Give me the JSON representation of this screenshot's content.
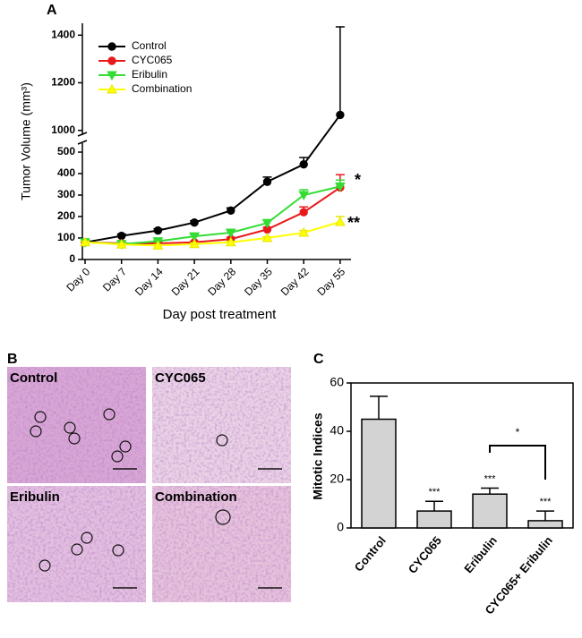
{
  "chart_data": [
    {
      "type": "line",
      "panel": "A",
      "ylabel": "Tumor Volume (mm³)",
      "xlabel": "Day post treatment",
      "categories": [
        "Day 0",
        "Day 7",
        "Day 14",
        "Day 21",
        "Day 28",
        "Day 35",
        "Day 42",
        "Day 55"
      ],
      "ylim": [
        0,
        1450
      ],
      "axis_segments": [
        [
          0,
          550
        ],
        [
          950,
          1450
        ]
      ],
      "yticks": [
        0,
        100,
        200,
        300,
        400,
        500,
        1000,
        1200,
        1400
      ],
      "legend": "upper left",
      "series": [
        {
          "name": "Control",
          "color": "#000000",
          "marker": "circle",
          "values": [
            80,
            110,
            135,
            172,
            228,
            362,
            443,
            1065
          ],
          "errors": [
            5,
            8,
            8,
            8,
            12,
            22,
            32,
            370
          ]
        },
        {
          "name": "CYC065",
          "color": "#e8191c",
          "marker": "circle",
          "values": [
            80,
            75,
            75,
            80,
            95,
            140,
            220,
            335
          ],
          "errors": [
            5,
            5,
            5,
            5,
            8,
            10,
            25,
            60
          ]
        },
        {
          "name": "Eribulin",
          "color": "#33dd33",
          "marker": "triangle-down",
          "values": [
            80,
            72,
            85,
            108,
            125,
            170,
            300,
            340
          ],
          "errors": [
            5,
            5,
            5,
            8,
            10,
            15,
            25,
            30
          ]
        },
        {
          "name": "Combination",
          "color": "#ffff00",
          "marker": "triangle-up",
          "values": [
            80,
            70,
            65,
            72,
            80,
            100,
            125,
            175
          ],
          "errors": [
            5,
            5,
            5,
            5,
            5,
            5,
            10,
            25
          ]
        }
      ],
      "annotations": [
        "*",
        "**"
      ]
    },
    {
      "type": "bar",
      "panel": "C",
      "ylabel": "Mitotic Indices",
      "color": "#d3d3d3",
      "categories": [
        "Control",
        "CYC065",
        "Eribulin",
        "CYC065+ Eribulin"
      ],
      "values": [
        45,
        7,
        14,
        3
      ],
      "errors": [
        9.5,
        4,
        2.5,
        4
      ],
      "ylim": [
        0,
        60
      ],
      "yticks": [
        0,
        20,
        40,
        60
      ],
      "significance": [
        null,
        "***",
        "***",
        "***"
      ],
      "comparison": "*"
    }
  ],
  "figure_b": {
    "panel": "B",
    "labels": [
      "Control",
      "CYC065",
      "Eribulin",
      "Combination"
    ]
  }
}
